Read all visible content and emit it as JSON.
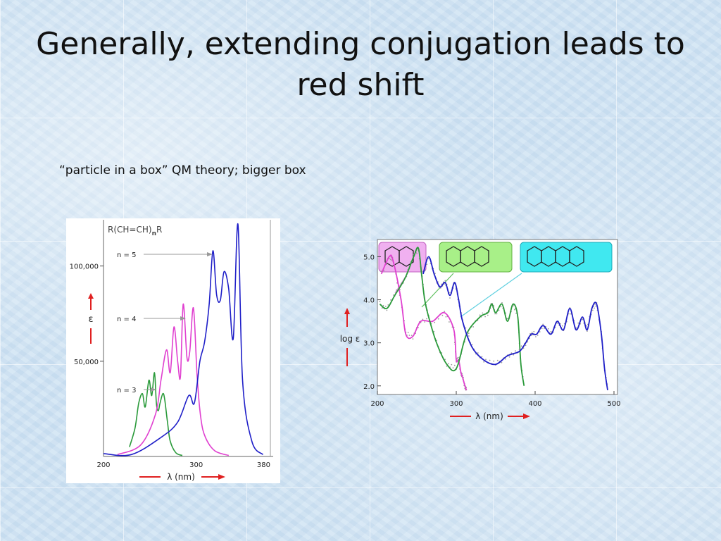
{
  "slide": {
    "title": "Generally, extending conjugation leads to red shift",
    "bullet": "“particle in a box” QM theory; bigger box"
  },
  "colors": {
    "blue": "#1f1fc8",
    "magenta": "#e040d0",
    "green": "#2a9a3a",
    "red": "#e02020",
    "label_naphthalene": "#f0b0f0",
    "label_anthracene": "#a8f088",
    "label_tetracene": "#40e8f0"
  },
  "chart_data": [
    {
      "type": "line",
      "title": "R(CH=CH)nR",
      "title_main": "R(CH=CH)",
      "title_sub": "n",
      "title_tail": "R",
      "xlabel": "λ (nm)",
      "ylabel": "ε",
      "xlim": [
        200,
        380
      ],
      "ylim": [
        0,
        125000
      ],
      "xticks": [
        200,
        300,
        380
      ],
      "yticks": [
        50000,
        100000
      ],
      "ytick_labels": [
        "50,000",
        "100,000"
      ],
      "annotations": [
        {
          "text": "n = 5",
          "series": "n = 5"
        },
        {
          "text": "n = 4",
          "series": "n = 4"
        },
        {
          "text": "n = 3",
          "series": "n = 3"
        }
      ],
      "series": [
        {
          "name": "n = 3",
          "color": "#2a9a3a",
          "x": [
            228,
            234,
            238,
            242,
            245,
            249,
            252,
            255,
            257,
            259,
            261,
            264,
            266,
            269,
            272,
            278,
            285
          ],
          "y": [
            5000,
            15000,
            28000,
            33000,
            26000,
            40000,
            32000,
            44000,
            28000,
            24000,
            28000,
            33000,
            30000,
            18000,
            8000,
            2000,
            500
          ]
        },
        {
          "name": "n = 4",
          "color": "#e040d0",
          "x": [
            215,
            240,
            256,
            262,
            268,
            272,
            276,
            280,
            283,
            286,
            290,
            293,
            297,
            301,
            305,
            310,
            320,
            335
          ],
          "y": [
            1000,
            6000,
            22000,
            40000,
            56000,
            44000,
            68000,
            50000,
            42000,
            80000,
            52000,
            55000,
            78000,
            42000,
            20000,
            10000,
            3000,
            500
          ]
        },
        {
          "name": "n = 5",
          "color": "#1f1fc8",
          "x": [
            200,
            230,
            262,
            280,
            292,
            298,
            304,
            309,
            314,
            318,
            322,
            326,
            330,
            335,
            340,
            345,
            350,
            360,
            372
          ],
          "y": [
            1500,
            1000,
            10000,
            18000,
            32000,
            28000,
            50000,
            60000,
            80000,
            108000,
            85000,
            82000,
            97000,
            88000,
            62000,
            122000,
            40000,
            8000,
            1000
          ]
        }
      ]
    },
    {
      "type": "line",
      "xlabel": "λ (nm)",
      "ylabel": "log ε",
      "xlim": [
        200,
        500
      ],
      "ylim": [
        1.8,
        5.4
      ],
      "xticks": [
        200,
        300,
        400,
        500
      ],
      "yticks": [
        2.0,
        3.0,
        4.0,
        5.0
      ],
      "ytick_labels": [
        "2.0",
        "3.0",
        "4.0",
        "5.0"
      ],
      "series": [
        {
          "name": "naphthalene",
          "color": "#e040d0",
          "x": [
            205,
            215,
            220,
            230,
            236,
            245,
            255,
            270,
            285,
            297,
            300,
            303,
            306,
            308,
            311,
            313
          ],
          "y": [
            4.6,
            5.0,
            4.9,
            4.0,
            3.2,
            3.15,
            3.5,
            3.5,
            3.7,
            3.3,
            2.6,
            2.6,
            2.3,
            2.2,
            2.0,
            1.9
          ]
        },
        {
          "name": "anthracene",
          "color": "#2a9a3a",
          "x": [
            203,
            212,
            222,
            235,
            246,
            252,
            256,
            260,
            265,
            275,
            288,
            300,
            313,
            330,
            340,
            345,
            350,
            358,
            365,
            372,
            378,
            382,
            386
          ],
          "y": [
            3.9,
            3.8,
            4.1,
            4.5,
            5.0,
            5.2,
            4.6,
            4.0,
            3.6,
            3.0,
            2.5,
            2.4,
            3.2,
            3.6,
            3.7,
            3.9,
            3.7,
            3.9,
            3.5,
            3.9,
            3.6,
            2.5,
            2.0
          ]
        },
        {
          "name": "tetracene",
          "color": "#1f1fc8",
          "x": [
            258,
            265,
            272,
            279,
            286,
            292,
            298,
            303,
            308,
            320,
            335,
            350,
            365,
            380,
            388,
            395,
            402,
            410,
            420,
            428,
            436,
            444,
            452,
            460,
            466,
            472,
            478,
            484,
            488,
            492
          ],
          "y": [
            4.6,
            5.0,
            4.6,
            4.3,
            4.4,
            4.1,
            4.4,
            4.0,
            3.5,
            2.9,
            2.6,
            2.5,
            2.7,
            2.8,
            3.0,
            3.2,
            3.2,
            3.4,
            3.2,
            3.5,
            3.3,
            3.8,
            3.3,
            3.6,
            3.3,
            3.8,
            3.9,
            3.2,
            2.4,
            1.9
          ]
        }
      ]
    }
  ]
}
